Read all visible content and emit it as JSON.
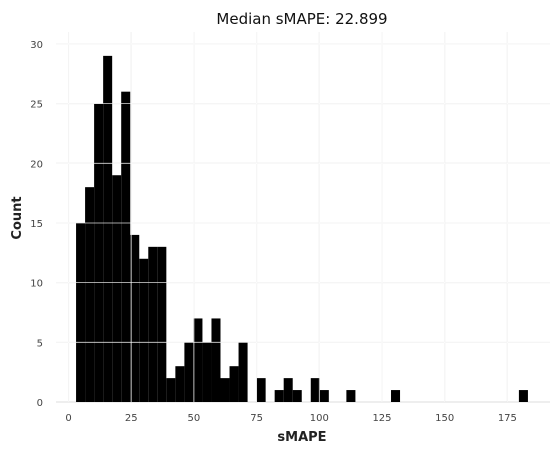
{
  "chart_data": {
    "type": "bar",
    "title": "Median sMAPE: 22.899",
    "xlabel": "sMAPE",
    "ylabel": "Count",
    "xlim": [
      -5,
      192
    ],
    "ylim": [
      0,
      31
    ],
    "x_ticks": [
      "0",
      "25",
      "50",
      "75",
      "100",
      "125",
      "150",
      "175"
    ],
    "y_ticks": [
      "0",
      "5",
      "10",
      "15",
      "20",
      "25",
      "30"
    ],
    "grid": true,
    "bar_color": "#000000",
    "bin_width": 3.6,
    "bins": [
      {
        "x0": 3.0,
        "count": 15
      },
      {
        "x0": 6.6,
        "count": 18
      },
      {
        "x0": 10.2,
        "count": 25
      },
      {
        "x0": 13.8,
        "count": 29
      },
      {
        "x0": 17.4,
        "count": 19
      },
      {
        "x0": 21.0,
        "count": 26
      },
      {
        "x0": 24.6,
        "count": 14
      },
      {
        "x0": 28.2,
        "count": 12
      },
      {
        "x0": 31.8,
        "count": 13
      },
      {
        "x0": 35.4,
        "count": 13
      },
      {
        "x0": 39.0,
        "count": 2
      },
      {
        "x0": 42.6,
        "count": 3
      },
      {
        "x0": 46.2,
        "count": 5
      },
      {
        "x0": 49.8,
        "count": 7
      },
      {
        "x0": 53.4,
        "count": 5
      },
      {
        "x0": 57.0,
        "count": 7
      },
      {
        "x0": 60.6,
        "count": 2
      },
      {
        "x0": 64.2,
        "count": 3
      },
      {
        "x0": 67.8,
        "count": 5
      },
      {
        "x0": 75.0,
        "count": 2
      },
      {
        "x0": 82.2,
        "count": 1
      },
      {
        "x0": 85.8,
        "count": 2
      },
      {
        "x0": 89.4,
        "count": 1
      },
      {
        "x0": 96.6,
        "count": 2
      },
      {
        "x0": 100.2,
        "count": 1
      },
      {
        "x0": 110.8,
        "count": 1
      },
      {
        "x0": 128.6,
        "count": 1
      },
      {
        "x0": 179.6,
        "count": 1
      }
    ]
  }
}
